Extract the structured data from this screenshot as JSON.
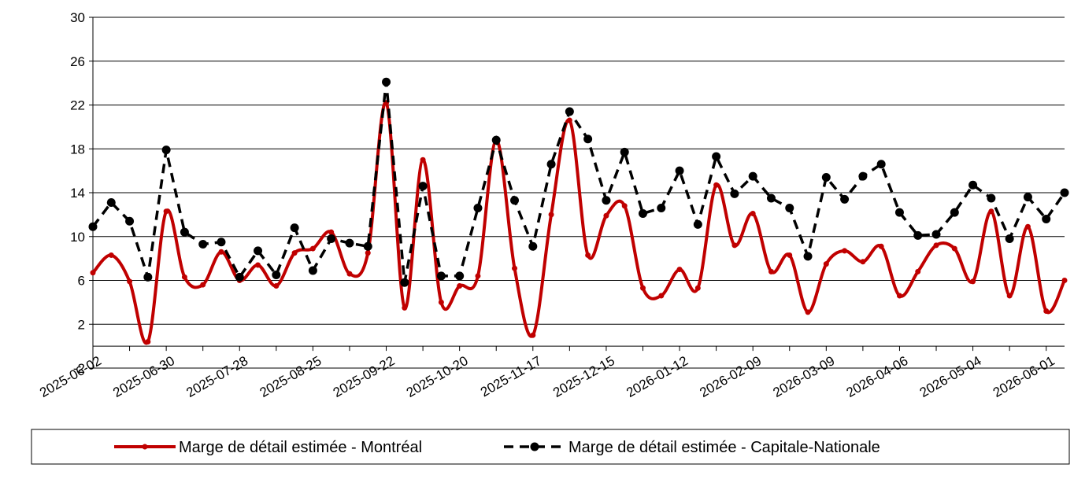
{
  "chart_data": {
    "type": "line",
    "categories": [
      "2025-06-02",
      null,
      null,
      null,
      "2025-06-30",
      null,
      null,
      null,
      "2025-07-28",
      null,
      null,
      null,
      "2025-08-25",
      null,
      null,
      null,
      "2025-09-22",
      null,
      null,
      null,
      "2025-10-20",
      null,
      null,
      null,
      "2025-11-17",
      null,
      null,
      null,
      "2025-12-15",
      null,
      null,
      null,
      "2026-01-12",
      null,
      null,
      null,
      "2026-02-09",
      null,
      null,
      null,
      "2026-03-09",
      null,
      null,
      null,
      "2026-04-06",
      null,
      null,
      null,
      "2026-05-04",
      null,
      null,
      null,
      "2026-06-01",
      null
    ],
    "series": [
      {
        "name": "Marge de détail estimée - Montréal",
        "color": "#c00000",
        "smooth": true,
        "values": [
          6.7,
          8.3,
          5.9,
          0.4,
          12.3,
          6.3,
          5.6,
          8.6,
          6.0,
          7.4,
          5.5,
          8.5,
          8.9,
          10.4,
          6.6,
          8.5,
          22.2,
          3.5,
          17.0,
          4.0,
          5.5,
          6.4,
          18.8,
          7.1,
          1.0,
          12.0,
          20.6,
          8.3,
          11.9,
          12.8,
          5.3,
          4.6,
          7.0,
          5.3,
          14.7,
          9.2,
          12.1,
          6.8,
          8.3,
          3.1,
          7.5,
          8.7,
          7.7,
          9.1,
          4.6,
          6.8,
          9.2,
          8.9,
          5.9,
          12.3,
          4.6,
          10.9,
          3.2,
          6.0
        ]
      },
      {
        "name": "Marge de détail estimée - Capitale-Nationale",
        "color": "#000000",
        "dashed": true,
        "values": [
          10.9,
          13.1,
          11.4,
          6.3,
          17.9,
          10.4,
          9.3,
          9.5,
          6.3,
          8.7,
          6.5,
          10.8,
          6.9,
          9.8,
          9.4,
          9.1,
          24.1,
          5.8,
          14.6,
          6.4,
          6.4,
          12.6,
          18.8,
          13.3,
          9.1,
          16.6,
          21.4,
          18.9,
          13.3,
          17.7,
          12.1,
          12.6,
          16.0,
          11.1,
          17.3,
          13.9,
          15.5,
          13.5,
          12.6,
          8.2,
          15.4,
          13.4,
          15.5,
          16.6,
          12.2,
          10.1,
          10.2,
          12.2,
          14.7,
          13.5,
          9.8,
          13.6,
          11.6,
          14.0
        ]
      }
    ],
    "ylim": [
      -2,
      30
    ],
    "yticks": [
      -2,
      2,
      6,
      10,
      14,
      18,
      22,
      26,
      30
    ],
    "grid": true,
    "legend": "bottom"
  }
}
